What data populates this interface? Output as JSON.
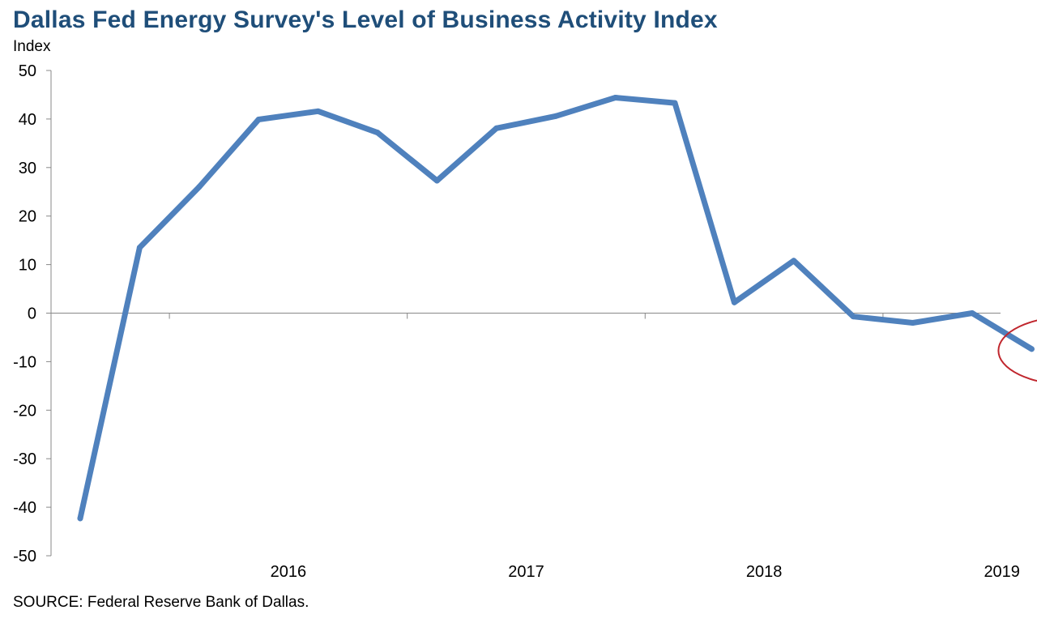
{
  "title": "Dallas Fed Energy Survey's Level of Business Activity Index",
  "ylabel": "Index",
  "source": "SOURCE: Federal Reserve Bank of Dallas.",
  "colors": {
    "series": "#4f81bd",
    "annotation_ellipse": "#c0262d",
    "title": "#1f4e79"
  },
  "chart_data": {
    "type": "line",
    "x": [
      "2015:Q3",
      "2015:Q4",
      "2016:Q1",
      "2016:Q2",
      "2016:Q3",
      "2016:Q4",
      "2017:Q1",
      "2017:Q2",
      "2017:Q3",
      "2017:Q4",
      "2018:Q1",
      "2018:Q2",
      "2018:Q3",
      "2018:Q4",
      "2019:Q1",
      "2019:Q2",
      "2019:Q3"
    ],
    "series": [
      {
        "values": [
          -42.3,
          13.5,
          26.0,
          39.9,
          41.6,
          37.2,
          27.3,
          38.1,
          40.6,
          44.4,
          43.3,
          2.2,
          10.8,
          -0.7,
          -2.0,
          0.0,
          -7.4
        ]
      }
    ],
    "ylim": [
      -50,
      50
    ],
    "yticks": [
      50,
      40,
      30,
      20,
      10,
      0,
      -10,
      -20,
      -30,
      -40,
      -50
    ],
    "xtick_labels": [
      "2016",
      "2017",
      "2018",
      "2019"
    ],
    "annotation": {
      "value": "-7.4",
      "period": "2019:Q3"
    },
    "grid": false
  }
}
